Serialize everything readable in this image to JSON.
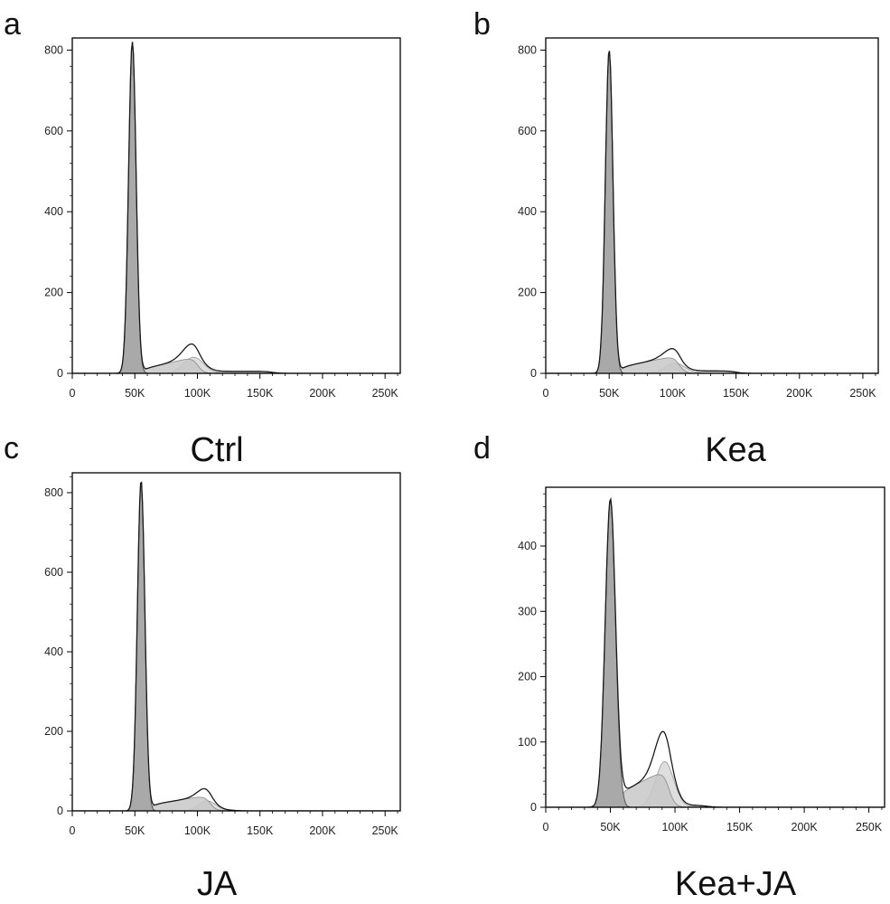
{
  "chart_data": [
    {
      "panel": "a",
      "name": "Ctrl",
      "type": "area",
      "xlim": [
        0,
        262144
      ],
      "ylim": [
        0,
        830
      ],
      "xticks": [
        0,
        50000,
        100000,
        150000,
        200000,
        250000
      ],
      "xtick_labels": [
        "0",
        "50K",
        "100K",
        "150K",
        "200K",
        "250K"
      ],
      "yticks": [
        0,
        200,
        400,
        600,
        800
      ],
      "ytick_labels": [
        "0",
        "200",
        "400",
        "600",
        "800"
      ],
      "g1": {
        "mean": 48000,
        "sd": 3000,
        "peak": 820
      },
      "s": {
        "from": 55000,
        "to": 100000,
        "start": 10,
        "end": 42
      },
      "g2": {
        "mean": 97000,
        "sd": 8000,
        "peak": 40
      },
      "tail": {
        "from": 110000,
        "to": 160000,
        "level": 5
      }
    },
    {
      "panel": "b",
      "name": "Kea",
      "type": "area",
      "xlim": [
        0,
        262144
      ],
      "ylim": [
        0,
        830
      ],
      "xticks": [
        0,
        50000,
        100000,
        150000,
        200000,
        250000
      ],
      "xtick_labels": [
        "0",
        "50K",
        "100K",
        "150K",
        "200K",
        "250K"
      ],
      "yticks": [
        0,
        200,
        400,
        600,
        800
      ],
      "ytick_labels": [
        "0",
        "200",
        "400",
        "600",
        "800"
      ],
      "g1": {
        "mean": 50000,
        "sd": 3000,
        "peak": 800
      },
      "s": {
        "from": 58000,
        "to": 105000,
        "start": 15,
        "end": 45
      },
      "g2": {
        "mean": 102000,
        "sd": 8000,
        "peak": 25
      },
      "tail": {
        "from": 115000,
        "to": 150000,
        "level": 6
      }
    },
    {
      "panel": "c",
      "name": "JA",
      "type": "area",
      "xlim": [
        0,
        262144
      ],
      "ylim": [
        0,
        850
      ],
      "xticks": [
        0,
        50000,
        100000,
        150000,
        200000,
        250000
      ],
      "xtick_labels": [
        "0",
        "50K",
        "100K",
        "150K",
        "200K",
        "250K"
      ],
      "yticks": [
        0,
        200,
        400,
        600,
        800
      ],
      "ytick_labels": [
        "0",
        "200",
        "400",
        "600",
        "800"
      ],
      "g1": {
        "mean": 55000,
        "sd": 3000,
        "peak": 830
      },
      "s": {
        "from": 62000,
        "to": 110000,
        "start": 15,
        "end": 40
      },
      "g2": {
        "mean": 108000,
        "sd": 7000,
        "peak": 25
      },
      "tail": {
        "from": 120000,
        "to": 130000,
        "level": 2
      }
    },
    {
      "panel": "d",
      "name": "Kea+JA",
      "type": "area",
      "xlim": [
        0,
        262144
      ],
      "ylim": [
        0,
        490
      ],
      "xticks": [
        0,
        50000,
        100000,
        150000,
        200000,
        250000
      ],
      "xtick_labels": [
        "0",
        "50K",
        "100K",
        "150K",
        "200K",
        "250K"
      ],
      "yticks": [
        0,
        100,
        200,
        300,
        400
      ],
      "ytick_labels": [
        "0",
        "100",
        "200",
        "300",
        "400"
      ],
      "g1": {
        "mean": 50000,
        "sd": 4000,
        "peak": 470
      },
      "s": {
        "from": 55000,
        "to": 95000,
        "start": 20,
        "end": 60
      },
      "g2": {
        "mean": 92000,
        "sd": 7000,
        "peak": 70
      },
      "tail": {
        "from": 105000,
        "to": 125000,
        "level": 3
      }
    }
  ],
  "colors": {
    "g1_fill": "#a9a9a9",
    "s_fill": "#c8c8c8",
    "g2_fill": "#dedede",
    "outline": "#1a1a1a",
    "axis": "#000000"
  }
}
